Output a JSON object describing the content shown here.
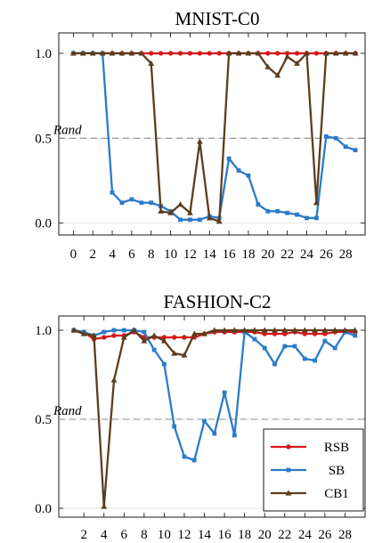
{
  "chart_data": [
    {
      "type": "line",
      "title": "MNIST-C0",
      "x": [
        0,
        1,
        2,
        3,
        4,
        5,
        6,
        7,
        8,
        9,
        10,
        11,
        12,
        13,
        14,
        15,
        16,
        17,
        18,
        19,
        20,
        21,
        22,
        23,
        24,
        25,
        26,
        27,
        28,
        29
      ],
      "xticks": [
        "0",
        "2",
        "4",
        "6",
        "8",
        "10",
        "12",
        "14",
        "16",
        "18",
        "20",
        "22",
        "24",
        "26",
        "28"
      ],
      "xtick_values": [
        0,
        2,
        4,
        6,
        8,
        10,
        12,
        14,
        16,
        18,
        20,
        22,
        24,
        26,
        28
      ],
      "xlim": [
        -1.5,
        30
      ],
      "yticks": [
        "0.0",
        "0.5",
        "1.0"
      ],
      "ytick_values": [
        0.0,
        0.5,
        1.0
      ],
      "ylim": [
        -0.07,
        1.12
      ],
      "hline": {
        "value": 0.5,
        "label": "Rand"
      },
      "series": [
        {
          "name": "RSB",
          "color": "#d7191c",
          "marker": "circle",
          "values": [
            1,
            1,
            1,
            1,
            1,
            1,
            1,
            1,
            1,
            1,
            1,
            1,
            1,
            1,
            1,
            1,
            1,
            1,
            1,
            1,
            1,
            1,
            1,
            1,
            1,
            1,
            1,
            1,
            1,
            1
          ]
        },
        {
          "name": "SB",
          "color": "#2b7bc9",
          "marker": "square",
          "values": [
            1,
            1,
            1,
            1,
            0.18,
            0.12,
            0.14,
            0.12,
            0.12,
            0.1,
            0.07,
            0.02,
            0.02,
            0.02,
            0.04,
            0.03,
            0.38,
            0.31,
            0.28,
            0.11,
            0.07,
            0.07,
            0.06,
            0.05,
            0.03,
            0.03,
            0.51,
            0.5,
            0.45,
            0.43
          ]
        },
        {
          "name": "CB1",
          "color": "#5c3d1e",
          "marker": "triangle",
          "values": [
            1,
            1,
            1,
            1,
            1,
            1,
            1,
            1,
            0.94,
            0.07,
            0.06,
            0.11,
            0.06,
            0.48,
            0.03,
            0.01,
            1,
            1,
            1,
            1,
            0.92,
            0.87,
            0.98,
            0.94,
            1,
            0.12,
            1,
            1,
            1,
            1
          ]
        }
      ]
    },
    {
      "type": "line",
      "title": "FASHION-C2",
      "x": [
        1,
        2,
        3,
        4,
        5,
        6,
        7,
        8,
        9,
        10,
        11,
        12,
        13,
        14,
        15,
        16,
        17,
        18,
        19,
        20,
        21,
        22,
        23,
        24,
        25,
        26,
        27,
        28,
        29
      ],
      "xticks": [
        "2",
        "4",
        "6",
        "8",
        "10",
        "12",
        "14",
        "16",
        "18",
        "20",
        "22",
        "24",
        "26",
        "28"
      ],
      "xtick_values": [
        2,
        4,
        6,
        8,
        10,
        12,
        14,
        16,
        18,
        20,
        22,
        24,
        26,
        28
      ],
      "xlim": [
        -0.5,
        30
      ],
      "yticks": [
        "0.0",
        "0.5",
        "1.0"
      ],
      "ytick_values": [
        0.0,
        0.5,
        1.0
      ],
      "ylim": [
        -0.05,
        1.08
      ],
      "hline": {
        "value": 0.5,
        "label": "Rand"
      },
      "legend_position": "bottom-right",
      "series": [
        {
          "name": "RSB",
          "color": "#d7191c",
          "marker": "circle",
          "values": [
            1,
            0.99,
            0.95,
            0.96,
            0.97,
            0.97,
            0.99,
            0.96,
            0.96,
            0.96,
            0.96,
            0.96,
            0.96,
            0.98,
            0.99,
            0.99,
            0.99,
            0.99,
            0.99,
            0.98,
            0.98,
            0.98,
            0.99,
            0.98,
            0.98,
            0.98,
            0.99,
            0.99,
            0.99
          ]
        },
        {
          "name": "SB",
          "color": "#2b7bc9",
          "marker": "square",
          "values": [
            1,
            0.99,
            0.97,
            0.99,
            1,
            1,
            1,
            0.99,
            0.89,
            0.81,
            0.46,
            0.29,
            0.27,
            0.49,
            0.42,
            0.65,
            0.41,
            0.99,
            0.95,
            0.9,
            0.81,
            0.91,
            0.91,
            0.84,
            0.83,
            0.94,
            0.9,
            0.99,
            0.97
          ]
        },
        {
          "name": "CB1",
          "color": "#5c3d1e",
          "marker": "triangle",
          "values": [
            1,
            0.98,
            0.97,
            0.01,
            0.72,
            0.96,
            1,
            0.94,
            0.97,
            0.94,
            0.87,
            0.86,
            0.98,
            0.98,
            1,
            1,
            1,
            1,
            1,
            1,
            1,
            1,
            1,
            1,
            1,
            1,
            1,
            1,
            1
          ]
        }
      ]
    }
  ]
}
